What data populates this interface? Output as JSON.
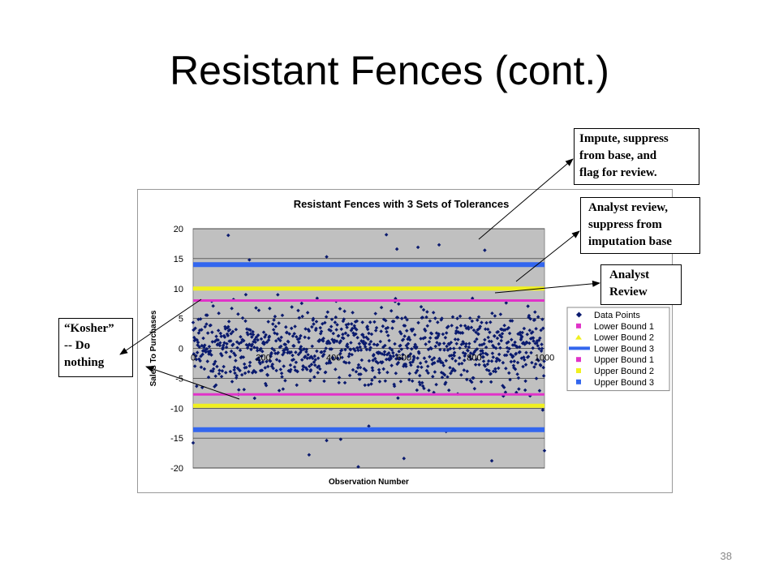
{
  "slide": {
    "title": "Resistant Fences (cont.)",
    "page_number": "38"
  },
  "callouts": {
    "impute": [
      "Impute, suppress",
      "from base, and",
      "flag for review."
    ],
    "analyst_review_suppress": [
      "Analyst review,",
      "suppress from",
      "imputation base"
    ],
    "analyst_review": [
      "Analyst",
      "Review"
    ],
    "kosher": [
      "“Kosher”",
      "-- Do",
      "nothing"
    ]
  },
  "chart_data": {
    "type": "scatter",
    "title": "Resistant Fences with 3 Sets of Tolerances",
    "xlabel": "Observation Number",
    "ylabel": "Sales To Purchases",
    "xlim": [
      0,
      1000
    ],
    "ylim": [
      -20,
      20
    ],
    "x_ticks": [
      0,
      200,
      400,
      600,
      800,
      1000
    ],
    "x_tick_labels": [
      "0",
      "200",
      "400",
      "600",
      "800",
      "1000"
    ],
    "y_ticks": [
      20,
      15,
      10,
      5,
      0,
      -5,
      -10,
      -15,
      -20
    ],
    "y_tick_labels": [
      "20",
      "15",
      "10",
      "5",
      "0",
      "-5",
      "-10",
      "-15",
      "-20"
    ],
    "grid": true,
    "legend_position": "right",
    "plot_background": "#c0c0c0",
    "series": [
      {
        "name": "Data Points",
        "kind": "points",
        "color": "#0a1a6e",
        "count": 1000,
        "distribution": "approximately normal, centered at 0, sd about 4, range -20 to 20",
        "values": [
          [
            0,
            -15.8
          ],
          [
            100,
            18.9
          ],
          [
            160,
            14.8
          ],
          [
            330,
            -17.8
          ],
          [
            380,
            15.3
          ],
          [
            470,
            -19.8
          ],
          [
            550,
            19.0
          ],
          [
            580,
            16.6
          ],
          [
            640,
            16.9
          ],
          [
            600,
            -18.4
          ],
          [
            700,
            17.3
          ],
          [
            830,
            16.4
          ],
          [
            850,
            -18.8
          ],
          [
            1000,
            -17.1
          ],
          [
            420,
            -15.2
          ],
          [
            380,
            -15.4
          ],
          [
            720,
            -13.9
          ],
          [
            500,
            -13.0
          ]
        ]
      },
      {
        "name": "Lower Bound 1",
        "kind": "hline",
        "y": -7.7,
        "color": "#e033c8"
      },
      {
        "name": "Lower Bound 2",
        "kind": "hline",
        "y": -9.6,
        "color": "#f0f020"
      },
      {
        "name": "Lower Bound 3",
        "kind": "hline",
        "y": -13.6,
        "color": "#3366ee"
      },
      {
        "name": "Upper Bound 1",
        "kind": "hline",
        "y": 8.0,
        "color": "#e033c8"
      },
      {
        "name": "Upper Bound 2",
        "kind": "hline",
        "y": 10.0,
        "color": "#f0f020"
      },
      {
        "name": "Upper Bound 3",
        "kind": "hline",
        "y": 14.0,
        "color": "#3366ee"
      }
    ]
  }
}
